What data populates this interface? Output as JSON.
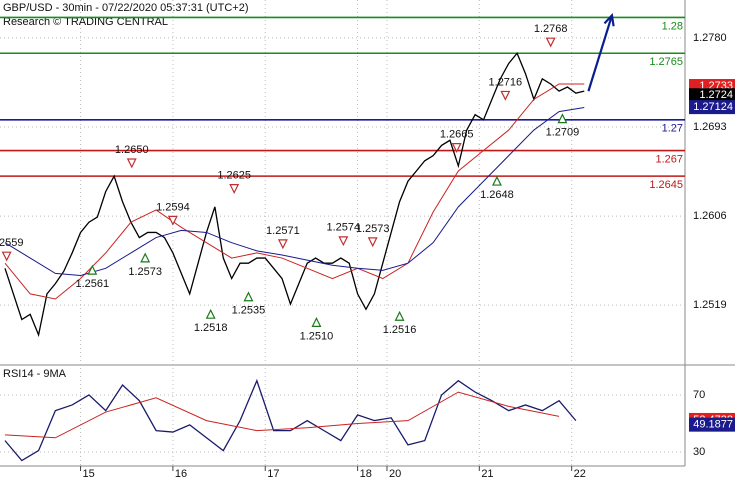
{
  "chart_data": [
    {
      "type": "line",
      "title": "GBP/USD - 30min - 07/22/2020 05:37:31 (UTC+2)",
      "subtitle": "Research © TRADING CENTRAL",
      "xlim": [
        0,
        81
      ],
      "xticks": [
        {
          "value": 9,
          "label": "15"
        },
        {
          "value": 20,
          "label": "16"
        },
        {
          "value": 31,
          "label": "17"
        },
        {
          "value": 42,
          "label": "18"
        },
        {
          "value": 45.5,
          "label": "20"
        },
        {
          "value": 56.5,
          "label": "21"
        },
        {
          "value": 67.5,
          "label": "22"
        }
      ],
      "ylim": [
        1.2484,
        1.2817
      ],
      "yticks": [
        {
          "value": 1.278,
          "label": "1.2780"
        },
        1.2693,
        1.2606,
        1.2519
      ],
      "grid": true,
      "series": [
        {
          "color": "#000000",
          "x": [
            0,
            1,
            2,
            3,
            4,
            5,
            6,
            7,
            8,
            9,
            10,
            11,
            12,
            13,
            14,
            15,
            16,
            17,
            18,
            19,
            20,
            21,
            22,
            23,
            24,
            25,
            26,
            27,
            28,
            29,
            30,
            31,
            32,
            33,
            34,
            35,
            36,
            37,
            38,
            39,
            40,
            41,
            42,
            43,
            44,
            45,
            46,
            47,
            48,
            49,
            50,
            51,
            52,
            53,
            54,
            55,
            56,
            57,
            58,
            59,
            60,
            61,
            62,
            63,
            64,
            65,
            66,
            67,
            68,
            69
          ],
          "values": [
            1.2555,
            1.253,
            1.2505,
            1.251,
            1.249,
            1.253,
            1.254,
            1.2552,
            1.257,
            1.259,
            1.26,
            1.2605,
            1.263,
            1.2645,
            1.262,
            1.26,
            1.2585,
            1.259,
            1.259,
            1.2585,
            1.257,
            1.255,
            1.253,
            1.256,
            1.259,
            1.2615,
            1.2565,
            1.2545,
            1.256,
            1.256,
            1.2565,
            1.2565,
            1.2555,
            1.2545,
            1.252,
            1.254,
            1.256,
            1.2565,
            1.256,
            1.256,
            1.2565,
            1.256,
            1.253,
            1.2515,
            1.253,
            1.256,
            1.259,
            1.262,
            1.264,
            1.265,
            1.266,
            1.2665,
            1.2675,
            1.268,
            1.2655,
            1.269,
            1.2705,
            1.27,
            1.272,
            1.274,
            1.2755,
            1.2765,
            1.2745,
            1.272,
            1.274,
            1.2735,
            1.2728,
            1.2732,
            1.2726,
            1.2728
          ]
        },
        {
          "color": "#cc2222",
          "x": [
            0,
            3,
            6,
            9,
            12,
            15,
            18,
            21,
            24,
            27,
            30,
            33,
            36,
            39,
            42,
            45,
            48,
            51,
            54,
            57,
            60,
            63,
            66,
            69
          ],
          "values": [
            1.256,
            1.253,
            1.2525,
            1.2545,
            1.257,
            1.26,
            1.2612,
            1.2595,
            1.258,
            1.2565,
            1.257,
            1.2565,
            1.2555,
            1.2545,
            1.2555,
            1.2545,
            1.256,
            1.261,
            1.265,
            1.267,
            1.269,
            1.272,
            1.2735,
            1.2735
          ]
        },
        {
          "color": "#1a1a8c",
          "x": [
            0,
            3,
            6,
            9,
            12,
            15,
            18,
            21,
            24,
            27,
            30,
            33,
            36,
            39,
            42,
            45,
            48,
            51,
            54,
            57,
            60,
            63,
            66,
            69
          ],
          "values": [
            1.258,
            1.2565,
            1.255,
            1.2548,
            1.2555,
            1.257,
            1.2585,
            1.2592,
            1.259,
            1.258,
            1.2572,
            1.2568,
            1.2563,
            1.2558,
            1.2555,
            1.2553,
            1.256,
            1.258,
            1.2615,
            1.264,
            1.2665,
            1.269,
            1.2708,
            1.2712
          ]
        }
      ],
      "levels": [
        {
          "value": 1.28,
          "color": "#1a8c1a"
        },
        {
          "value": 1.2765,
          "color": "#1a8c1a"
        },
        {
          "value": 1.27,
          "color": "#1a1a9c"
        },
        {
          "value": 1.267,
          "color": "#c01818"
        },
        {
          "value": 1.2645,
          "color": "#c01818"
        }
      ],
      "pivots": [
        {
          "x": 0.2,
          "value": 1.2559,
          "label": "1.2559",
          "kind": "high"
        },
        {
          "x": 10.4,
          "value": 1.2561,
          "label": "1.2561",
          "kind": "low"
        },
        {
          "x": 15.1,
          "value": 1.265,
          "label": "1.2650",
          "kind": "high"
        },
        {
          "x": 16.7,
          "value": 1.2573,
          "label": "1.2573",
          "kind": "low"
        },
        {
          "x": 20,
          "value": 1.2594,
          "label": "1.2594",
          "kind": "high"
        },
        {
          "x": 24.5,
          "value": 1.2518,
          "label": "1.2518",
          "kind": "low"
        },
        {
          "x": 27.3,
          "value": 1.2625,
          "label": "1.2625",
          "kind": "high"
        },
        {
          "x": 29,
          "value": 1.2535,
          "label": "1.2535",
          "kind": "low"
        },
        {
          "x": 33.1,
          "value": 1.2571,
          "label": "1.2571",
          "kind": "high"
        },
        {
          "x": 37.1,
          "value": 1.251,
          "label": "1.2510",
          "kind": "low"
        },
        {
          "x": 40.3,
          "value": 1.2574,
          "label": "1.2574",
          "kind": "high"
        },
        {
          "x": 43.8,
          "value": 1.2573,
          "label": "1.2573",
          "kind": "high"
        },
        {
          "x": 47,
          "value": 1.2516,
          "label": "1.2516",
          "kind": "low"
        },
        {
          "x": 53.8,
          "value": 1.2665,
          "label": "1.2665",
          "kind": "high"
        },
        {
          "x": 58.6,
          "value": 1.2648,
          "label": "1.2648",
          "kind": "low"
        },
        {
          "x": 59.6,
          "value": 1.2716,
          "label": "1.2716",
          "kind": "high"
        },
        {
          "x": 65,
          "value": 1.2768,
          "label": "1.2768",
          "kind": "high"
        },
        {
          "x": 66.4,
          "value": 1.2709,
          "label": "1.2709",
          "kind": "low"
        }
      ],
      "forecast": {
        "x": [
          69.5,
          72.3
        ],
        "values": [
          1.2728,
          1.2802
        ],
        "color": "#0a1f8f"
      },
      "price_boxes": [
        {
          "value": 1.2733,
          "color": "#e02020"
        },
        {
          "value": 1.2724,
          "color": "#000000"
        },
        {
          "value": 1.27124,
          "color": "#1a1a8c"
        }
      ]
    },
    {
      "type": "line",
      "title": "RSI14 - 9MA",
      "ylim": [
        17.4,
        88.9
      ],
      "yticks": [
        70,
        30
      ],
      "grid": true,
      "series": [
        {
          "color": "#1a1a6c",
          "x": [
            0,
            2,
            4,
            6,
            8,
            10,
            12,
            14,
            16,
            18,
            20,
            22,
            24,
            26,
            28,
            30,
            32,
            34,
            36,
            38,
            40,
            42,
            44,
            46,
            48,
            50,
            52,
            54,
            56,
            58,
            60,
            62,
            64,
            66,
            68
          ],
          "values": [
            38,
            24,
            31,
            59,
            63,
            70,
            59,
            77,
            66,
            45,
            44,
            49,
            40,
            31,
            52,
            80,
            45,
            45,
            52,
            45,
            38,
            56,
            52,
            54,
            35,
            38,
            70,
            80,
            72,
            66,
            59,
            63,
            59,
            66,
            52
          ]
        },
        {
          "color": "#cc2222",
          "x": [
            0,
            6,
            12,
            18,
            24,
            30,
            36,
            42,
            48,
            54,
            60,
            66
          ],
          "values": [
            42,
            40,
            58,
            68,
            52,
            45,
            47,
            50,
            52,
            72,
            62,
            55
          ]
        }
      ],
      "price_boxes": [
        {
          "value": 52.4738,
          "color": "#e02020"
        },
        {
          "value": 49.1877,
          "color": "#1a1a8c"
        }
      ]
    }
  ]
}
